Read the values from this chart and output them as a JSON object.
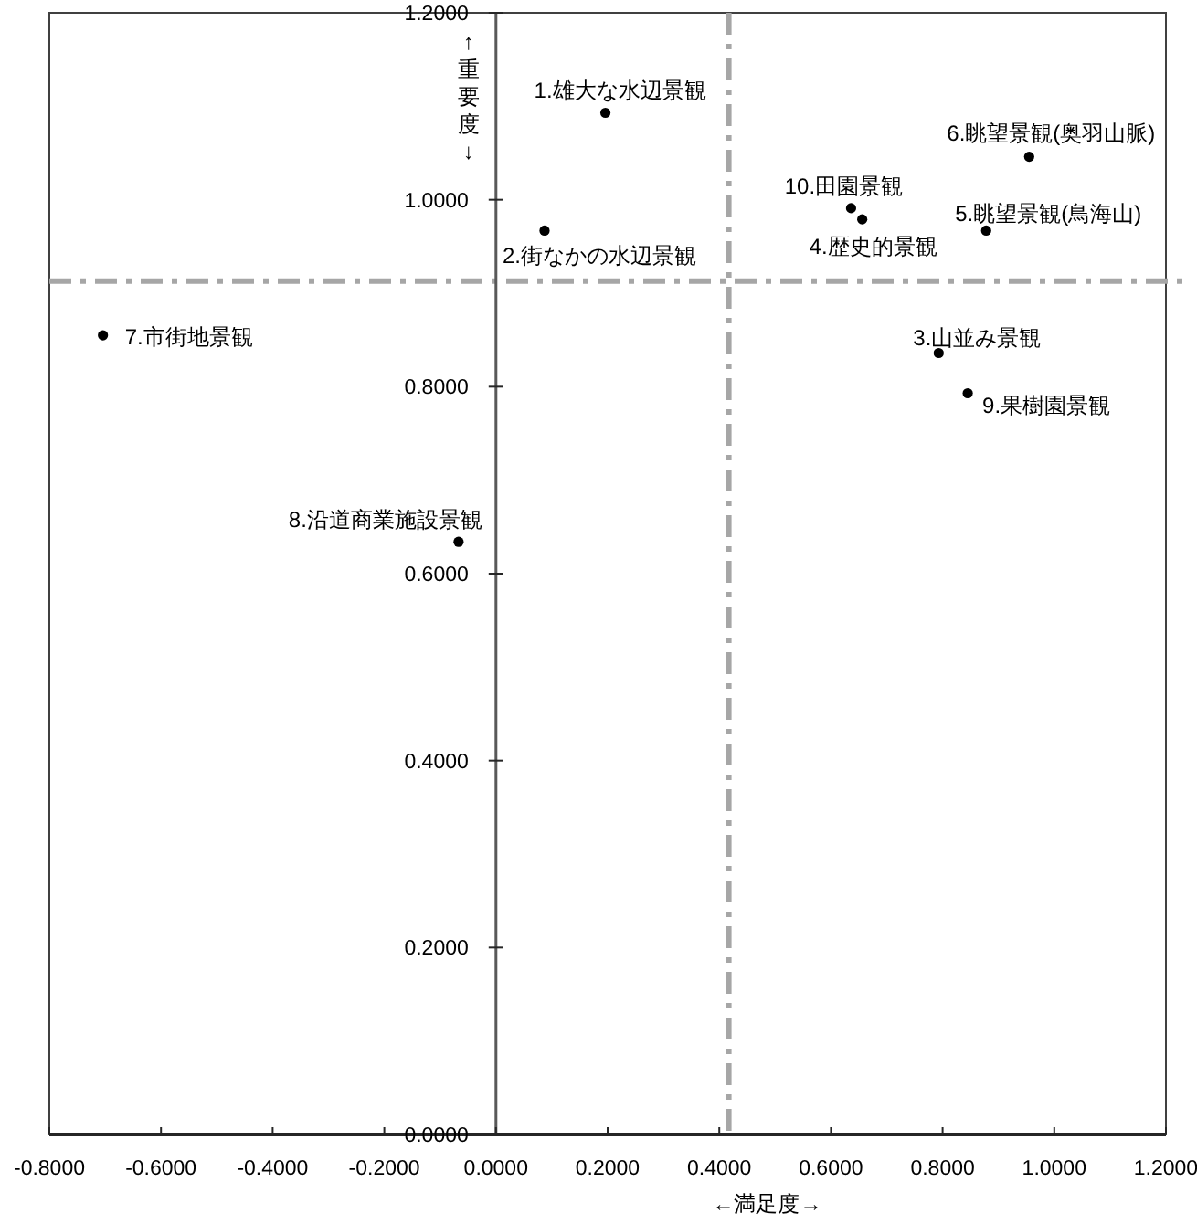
{
  "chart_data": {
    "type": "scatter",
    "xlabel": "←満足度→",
    "ylabel": "↑重要度↓",
    "series": [
      {
        "color": "#000000",
        "x": [
          0.196,
          0.087,
          0.793,
          0.656,
          0.878,
          0.955,
          -0.704,
          -0.067,
          0.845,
          0.636
        ],
        "values": [
          1.093,
          0.967,
          0.836,
          0.979,
          0.967,
          1.046,
          0.855,
          0.634,
          0.793,
          0.991
        ]
      }
    ],
    "annotations": [
      {
        "text": "1.雄大な水辺景観",
        "x": 0.196,
        "y": 1.093
      },
      {
        "text": "2.街なかの水辺景観",
        "x": 0.087,
        "y": 0.967
      },
      {
        "text": "3.山並み景観",
        "x": 0.793,
        "y": 0.836
      },
      {
        "text": "4.歴史的景観",
        "x": 0.656,
        "y": 0.979
      },
      {
        "text": "5.眺望景観(鳥海山)",
        "x": 0.878,
        "y": 0.967
      },
      {
        "text": "6.眺望景観(奥羽山脈)",
        "x": 0.955,
        "y": 1.046
      },
      {
        "text": "7.市街地景観",
        "x": -0.704,
        "y": 0.855
      },
      {
        "text": "8.沿道商業施設景観",
        "x": -0.067,
        "y": 0.634
      },
      {
        "text": "9.果樹園景観",
        "x": 0.845,
        "y": 0.793
      },
      {
        "text": "10.田園景観",
        "x": 0.636,
        "y": 0.991
      }
    ],
    "xlim": [
      -0.8,
      1.2
    ],
    "xticks": [
      {
        "value": -0.8,
        "label": "-0.8000"
      },
      {
        "value": -0.6,
        "label": "-0.6000"
      },
      {
        "value": -0.4,
        "label": "-0.4000"
      },
      {
        "value": -0.2,
        "label": "-0.2000"
      },
      {
        "value": 0,
        "label": "0.0000"
      },
      {
        "value": 0.2,
        "label": "0.2000"
      },
      {
        "value": 0.4,
        "label": "0.4000"
      },
      {
        "value": 0.6,
        "label": "0.6000"
      },
      {
        "value": 0.8,
        "label": "0.8000"
      },
      {
        "value": 1.0,
        "label": "1.0000"
      },
      {
        "value": 1.2,
        "label": "1.2000"
      }
    ],
    "ylim": [
      0,
      1.2
    ],
    "yticks": [
      {
        "value": 0,
        "label": "0.0000"
      },
      {
        "value": 0.2,
        "label": "0.2000"
      },
      {
        "value": 0.4,
        "label": "0.4000"
      },
      {
        "value": 0.6,
        "label": "0.6000"
      },
      {
        "value": 0.8,
        "label": "0.8000"
      },
      {
        "value": 1.0,
        "label": "1.0000"
      },
      {
        "value": 1.2,
        "label": "1.2000"
      }
    ],
    "ref_lines": [
      {
        "axis": "x",
        "value": 0.417,
        "color": "#a6a6a6",
        "line_style": "dashdot"
      },
      {
        "axis": "y",
        "value": 0.913,
        "color": "#a6a6a6",
        "line_style": "dashdot"
      }
    ],
    "marker": "circle",
    "grid": false
  }
}
